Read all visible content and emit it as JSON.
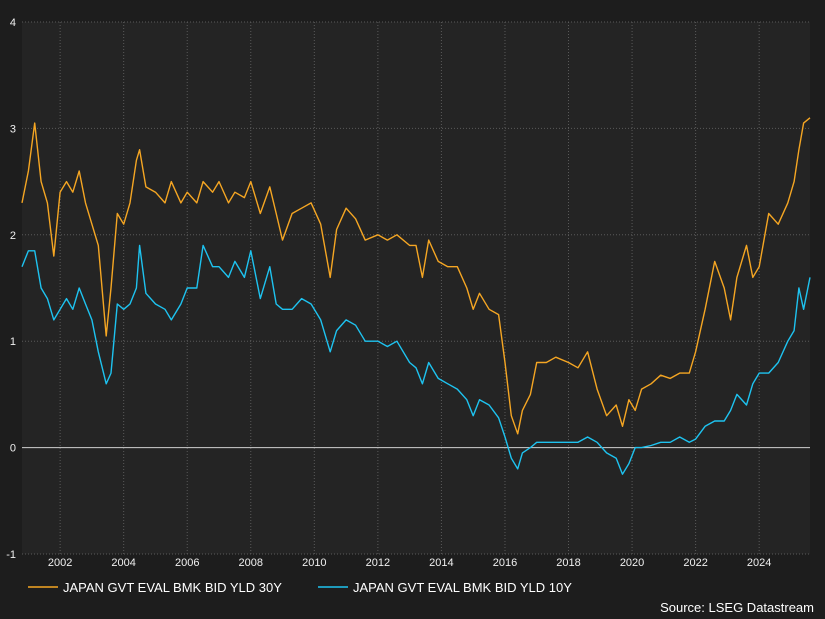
{
  "chart_data": {
    "type": "line",
    "title": "",
    "xlabel": "",
    "ylabel": "",
    "xlim": [
      2000.8,
      2025.6
    ],
    "ylim": [
      -1,
      4
    ],
    "x_ticks": [
      "2002",
      "2004",
      "2006",
      "2008",
      "2010",
      "2012",
      "2014",
      "2016",
      "2018",
      "2020",
      "2022",
      "2024"
    ],
    "y_ticks": [
      "4",
      "3",
      "2",
      "1",
      "0",
      "-1"
    ],
    "grid": "dotted",
    "legend_position": "bottom-left",
    "source": "Source: LSEG Datastream",
    "series": [
      {
        "name": "JAPAN GVT EVAL BMK BID YLD 30Y",
        "color": "#f5a623",
        "x": [
          2000.8,
          2001.0,
          2001.2,
          2001.4,
          2001.6,
          2001.8,
          2002.0,
          2002.2,
          2002.4,
          2002.6,
          2002.8,
          2003.0,
          2003.2,
          2003.45,
          2003.6,
          2003.8,
          2004.0,
          2004.2,
          2004.4,
          2004.5,
          2004.7,
          2005.0,
          2005.3,
          2005.5,
          2005.8,
          2006.0,
          2006.3,
          2006.5,
          2006.8,
          2007.0,
          2007.3,
          2007.5,
          2007.8,
          2008.0,
          2008.3,
          2008.6,
          2008.8,
          2009.0,
          2009.3,
          2009.6,
          2009.9,
          2010.2,
          2010.5,
          2010.7,
          2011.0,
          2011.3,
          2011.6,
          2012.0,
          2012.3,
          2012.6,
          2013.0,
          2013.2,
          2013.4,
          2013.6,
          2013.9,
          2014.2,
          2014.5,
          2014.8,
          2015.0,
          2015.2,
          2015.5,
          2015.8,
          2016.0,
          2016.2,
          2016.4,
          2016.55,
          2016.8,
          2017.0,
          2017.3,
          2017.6,
          2018.0,
          2018.3,
          2018.6,
          2018.9,
          2019.2,
          2019.5,
          2019.7,
          2019.9,
          2020.1,
          2020.3,
          2020.6,
          2020.9,
          2021.2,
          2021.5,
          2021.8,
          2022.0,
          2022.3,
          2022.6,
          2022.9,
          2023.1,
          2023.3,
          2023.6,
          2023.8,
          2024.0,
          2024.3,
          2024.6,
          2024.9,
          2025.1,
          2025.25,
          2025.4,
          2025.6
        ],
        "values": [
          2.3,
          2.6,
          3.05,
          2.5,
          2.3,
          1.8,
          2.4,
          2.5,
          2.4,
          2.6,
          2.3,
          2.1,
          1.9,
          1.05,
          1.5,
          2.2,
          2.1,
          2.3,
          2.7,
          2.8,
          2.45,
          2.4,
          2.3,
          2.5,
          2.3,
          2.4,
          2.3,
          2.5,
          2.4,
          2.5,
          2.3,
          2.4,
          2.35,
          2.5,
          2.2,
          2.45,
          2.2,
          1.95,
          2.2,
          2.25,
          2.3,
          2.1,
          1.6,
          2.05,
          2.25,
          2.15,
          1.95,
          2.0,
          1.95,
          2.0,
          1.9,
          1.9,
          1.6,
          1.95,
          1.75,
          1.7,
          1.7,
          1.5,
          1.3,
          1.45,
          1.3,
          1.25,
          0.8,
          0.3,
          0.13,
          0.35,
          0.5,
          0.8,
          0.8,
          0.85,
          0.8,
          0.75,
          0.9,
          0.55,
          0.3,
          0.4,
          0.2,
          0.45,
          0.35,
          0.55,
          0.6,
          0.68,
          0.65,
          0.7,
          0.7,
          0.9,
          1.3,
          1.75,
          1.5,
          1.2,
          1.6,
          1.9,
          1.6,
          1.7,
          2.2,
          2.1,
          2.3,
          2.5,
          2.8,
          3.05,
          3.1
        ]
      },
      {
        "name": "JAPAN GVT EVAL BMK BID YLD 10Y",
        "color": "#1ec3f0",
        "x": [
          2000.8,
          2001.0,
          2001.2,
          2001.4,
          2001.6,
          2001.8,
          2002.0,
          2002.2,
          2002.4,
          2002.6,
          2002.8,
          2003.0,
          2003.2,
          2003.45,
          2003.6,
          2003.8,
          2004.0,
          2004.2,
          2004.4,
          2004.5,
          2004.7,
          2005.0,
          2005.3,
          2005.5,
          2005.8,
          2006.0,
          2006.3,
          2006.5,
          2006.8,
          2007.0,
          2007.3,
          2007.5,
          2007.8,
          2008.0,
          2008.3,
          2008.6,
          2008.8,
          2009.0,
          2009.3,
          2009.6,
          2009.9,
          2010.2,
          2010.5,
          2010.7,
          2011.0,
          2011.3,
          2011.6,
          2012.0,
          2012.3,
          2012.6,
          2013.0,
          2013.2,
          2013.4,
          2013.6,
          2013.9,
          2014.2,
          2014.5,
          2014.8,
          2015.0,
          2015.2,
          2015.5,
          2015.8,
          2016.0,
          2016.2,
          2016.4,
          2016.55,
          2016.8,
          2017.0,
          2017.3,
          2017.6,
          2018.0,
          2018.3,
          2018.6,
          2018.9,
          2019.2,
          2019.5,
          2019.7,
          2019.9,
          2020.1,
          2020.3,
          2020.6,
          2020.9,
          2021.2,
          2021.5,
          2021.8,
          2022.0,
          2022.3,
          2022.6,
          2022.9,
          2023.1,
          2023.3,
          2023.6,
          2023.8,
          2024.0,
          2024.3,
          2024.6,
          2024.9,
          2025.1,
          2025.25,
          2025.4,
          2025.6
        ],
        "values": [
          1.7,
          1.85,
          1.85,
          1.5,
          1.4,
          1.2,
          1.3,
          1.4,
          1.3,
          1.5,
          1.35,
          1.2,
          0.9,
          0.6,
          0.7,
          1.35,
          1.3,
          1.35,
          1.5,
          1.9,
          1.45,
          1.35,
          1.3,
          1.2,
          1.35,
          1.5,
          1.5,
          1.9,
          1.7,
          1.7,
          1.6,
          1.75,
          1.6,
          1.85,
          1.4,
          1.7,
          1.35,
          1.3,
          1.3,
          1.4,
          1.35,
          1.2,
          0.9,
          1.1,
          1.2,
          1.15,
          1.0,
          1.0,
          0.95,
          1.0,
          0.8,
          0.75,
          0.6,
          0.8,
          0.65,
          0.6,
          0.55,
          0.45,
          0.3,
          0.45,
          0.4,
          0.28,
          0.1,
          -0.1,
          -0.2,
          -0.05,
          0.0,
          0.05,
          0.05,
          0.05,
          0.05,
          0.05,
          0.1,
          0.05,
          -0.05,
          -0.1,
          -0.25,
          -0.15,
          0.0,
          0.0,
          0.02,
          0.05,
          0.05,
          0.1,
          0.05,
          0.08,
          0.2,
          0.25,
          0.25,
          0.35,
          0.5,
          0.4,
          0.6,
          0.7,
          0.7,
          0.8,
          1.0,
          1.1,
          1.5,
          1.3,
          1.6
        ]
      }
    ]
  }
}
